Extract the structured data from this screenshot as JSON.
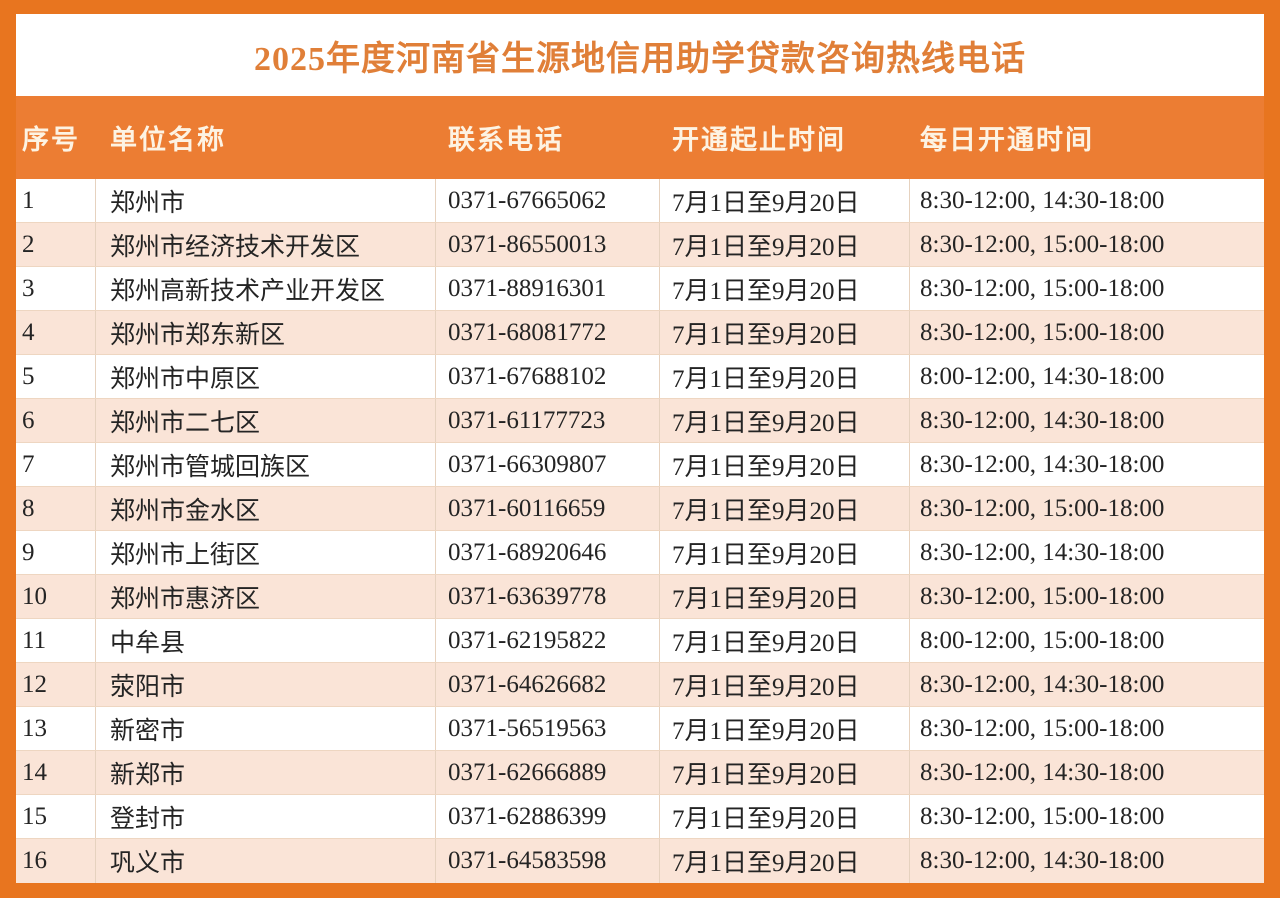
{
  "title": "2025年度河南省生源地信用助学贷款咨询热线电话",
  "colors": {
    "frame_orange": "#e8751f",
    "header_bg": "#ec7d33",
    "header_text": "#fdf3e3",
    "title_text": "#e07f38",
    "row_white": "#ffffff",
    "row_peach": "#fae4d7",
    "cell_text": "#242424"
  },
  "table": {
    "columns": [
      "序号",
      "单位名称",
      "联系电话",
      "开通起止时间",
      "每日开通时间"
    ],
    "rows": [
      {
        "no": "1",
        "name": "郑州市",
        "phone": "0371-67665062",
        "dates": "7月1日至9月20日",
        "hours": "8:30-12:00, 14:30-18:00"
      },
      {
        "no": "2",
        "name": "郑州市经济技术开发区",
        "phone": "0371-86550013",
        "dates": "7月1日至9月20日",
        "hours": "8:30-12:00, 15:00-18:00"
      },
      {
        "no": "3",
        "name": "郑州高新技术产业开发区",
        "phone": "0371-88916301",
        "dates": "7月1日至9月20日",
        "hours": "8:30-12:00, 15:00-18:00"
      },
      {
        "no": "4",
        "name": "郑州市郑东新区",
        "phone": "0371-68081772",
        "dates": "7月1日至9月20日",
        "hours": "8:30-12:00, 15:00-18:00"
      },
      {
        "no": "5",
        "name": "郑州市中原区",
        "phone": "0371-67688102",
        "dates": "7月1日至9月20日",
        "hours": "8:00-12:00, 14:30-18:00"
      },
      {
        "no": "6",
        "name": "郑州市二七区",
        "phone": "0371-61177723",
        "dates": "7月1日至9月20日",
        "hours": "8:30-12:00, 14:30-18:00"
      },
      {
        "no": "7",
        "name": "郑州市管城回族区",
        "phone": "0371-66309807",
        "dates": "7月1日至9月20日",
        "hours": "8:30-12:00, 14:30-18:00"
      },
      {
        "no": "8",
        "name": "郑州市金水区",
        "phone": "0371-60116659",
        "dates": "7月1日至9月20日",
        "hours": "8:30-12:00, 15:00-18:00"
      },
      {
        "no": "9",
        "name": "郑州市上街区",
        "phone": "0371-68920646",
        "dates": "7月1日至9月20日",
        "hours": "8:30-12:00, 14:30-18:00"
      },
      {
        "no": "10",
        "name": "郑州市惠济区",
        "phone": "0371-63639778",
        "dates": "7月1日至9月20日",
        "hours": "8:30-12:00, 15:00-18:00"
      },
      {
        "no": "11",
        "name": "中牟县",
        "phone": "0371-62195822",
        "dates": "7月1日至9月20日",
        "hours": "8:00-12:00, 15:00-18:00"
      },
      {
        "no": "12",
        "name": "荥阳市",
        "phone": "0371-64626682",
        "dates": "7月1日至9月20日",
        "hours": "8:30-12:00, 14:30-18:00"
      },
      {
        "no": "13",
        "name": "新密市",
        "phone": "0371-56519563",
        "dates": "7月1日至9月20日",
        "hours": "8:30-12:00, 15:00-18:00"
      },
      {
        "no": "14",
        "name": "新郑市",
        "phone": "0371-62666889",
        "dates": "7月1日至9月20日",
        "hours": "8:30-12:00, 14:30-18:00"
      },
      {
        "no": "15",
        "name": "登封市",
        "phone": "0371-62886399",
        "dates": "7月1日至9月20日",
        "hours": "8:30-12:00, 15:00-18:00"
      },
      {
        "no": "16",
        "name": "巩义市",
        "phone": "0371-64583598",
        "dates": "7月1日至9月20日",
        "hours": "8:30-12:00, 14:30-18:00"
      }
    ]
  }
}
